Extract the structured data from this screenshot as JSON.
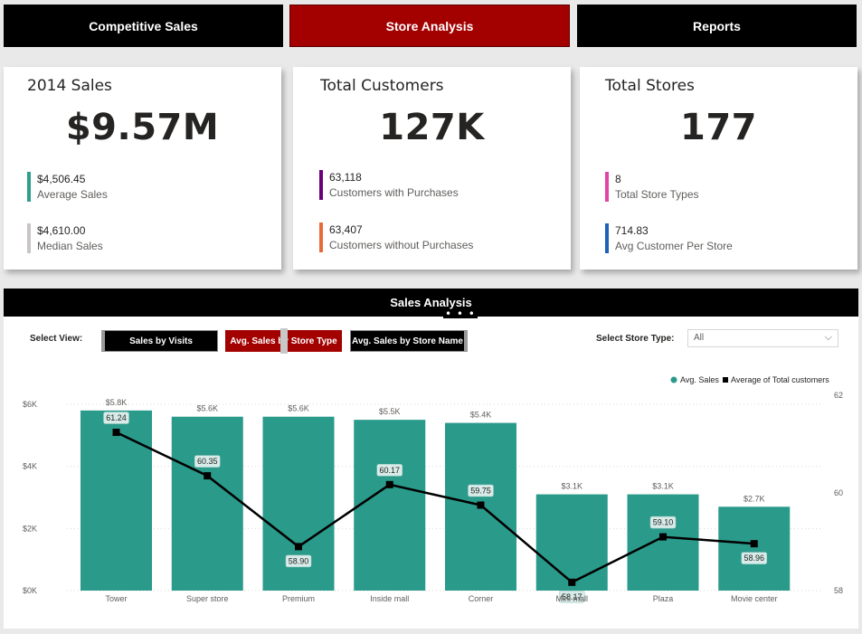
{
  "nav": {
    "competitive": "Competitive Sales",
    "store": "Store Analysis",
    "reports": "Reports"
  },
  "cards": {
    "sales": {
      "title": "2014 Sales",
      "value": "$9.57M",
      "kpis": [
        {
          "value": "$4,506.45",
          "label": "Average Sales",
          "color": "#2e9e8f"
        },
        {
          "value": "$4,610.00",
          "label": "Median Sales",
          "color": "#c8c6c4"
        }
      ]
    },
    "customers": {
      "title": "Total Customers",
      "value": "127K",
      "kpis": [
        {
          "value": "63,118",
          "label": "Customers with Purchases",
          "color": "#6b007b"
        },
        {
          "value": "63,407",
          "label": "Customers without Purchases",
          "color": "#e66c37"
        }
      ]
    },
    "stores": {
      "title": "Total Stores",
      "value": "177",
      "kpis": [
        {
          "value": "8",
          "label": "Total Store Types",
          "color": "#e044a7"
        },
        {
          "value": "714.83",
          "label": "Avg Customer Per Store",
          "color": "#1f61b7"
        }
      ]
    }
  },
  "panel": {
    "title": "Sales Analysis",
    "more_icon": "ellipsis-icon",
    "select_view_label": "Select View:",
    "view_buttons": [
      "Sales by Visits",
      "Avg. Sales by Store Type",
      "Avg. Sales by Store Name"
    ],
    "store_type_label": "Select Store Type:",
    "store_type_value": "All",
    "colors": {
      "bar": "#2a9a8b",
      "line": "#000000",
      "selected": "#a30000"
    }
  },
  "chart_data": {
    "type": "bar",
    "categories": [
      "Tower",
      "Super store",
      "Premium",
      "Inside mall",
      "Corner",
      "Mini mall",
      "Plaza",
      "Movie center"
    ],
    "series": [
      {
        "name": "Avg. Sales",
        "type": "bar",
        "axis": "left",
        "values": [
          5800,
          5600,
          5600,
          5500,
          5400,
          3100,
          3100,
          2700
        ],
        "labels": [
          "$5.8K",
          "$5.6K",
          "$5.6K",
          "$5.5K",
          "$5.4K",
          "$3.1K",
          "$3.1K",
          "$2.7K"
        ]
      },
      {
        "name": "Average of Total customers",
        "type": "line",
        "axis": "right",
        "values": [
          61.24,
          60.35,
          58.9,
          60.17,
          59.75,
          58.17,
          59.1,
          58.96
        ],
        "labels": [
          "61.24",
          "60.35",
          "58.90",
          "60.17",
          "59.75",
          "58.17",
          "59.10",
          "58.96"
        ]
      }
    ],
    "y_left": {
      "ticks": [
        "$0K",
        "$2K",
        "$4K",
        "$6K"
      ],
      "tick_values": [
        0,
        2000,
        4000,
        6000
      ],
      "range": [
        0,
        6200
      ]
    },
    "y_right": {
      "ticks": [
        "58",
        "60",
        "62"
      ],
      "tick_values": [
        58,
        60,
        62
      ],
      "range": [
        58,
        62
      ]
    },
    "grid": true,
    "legend": "top-right"
  }
}
